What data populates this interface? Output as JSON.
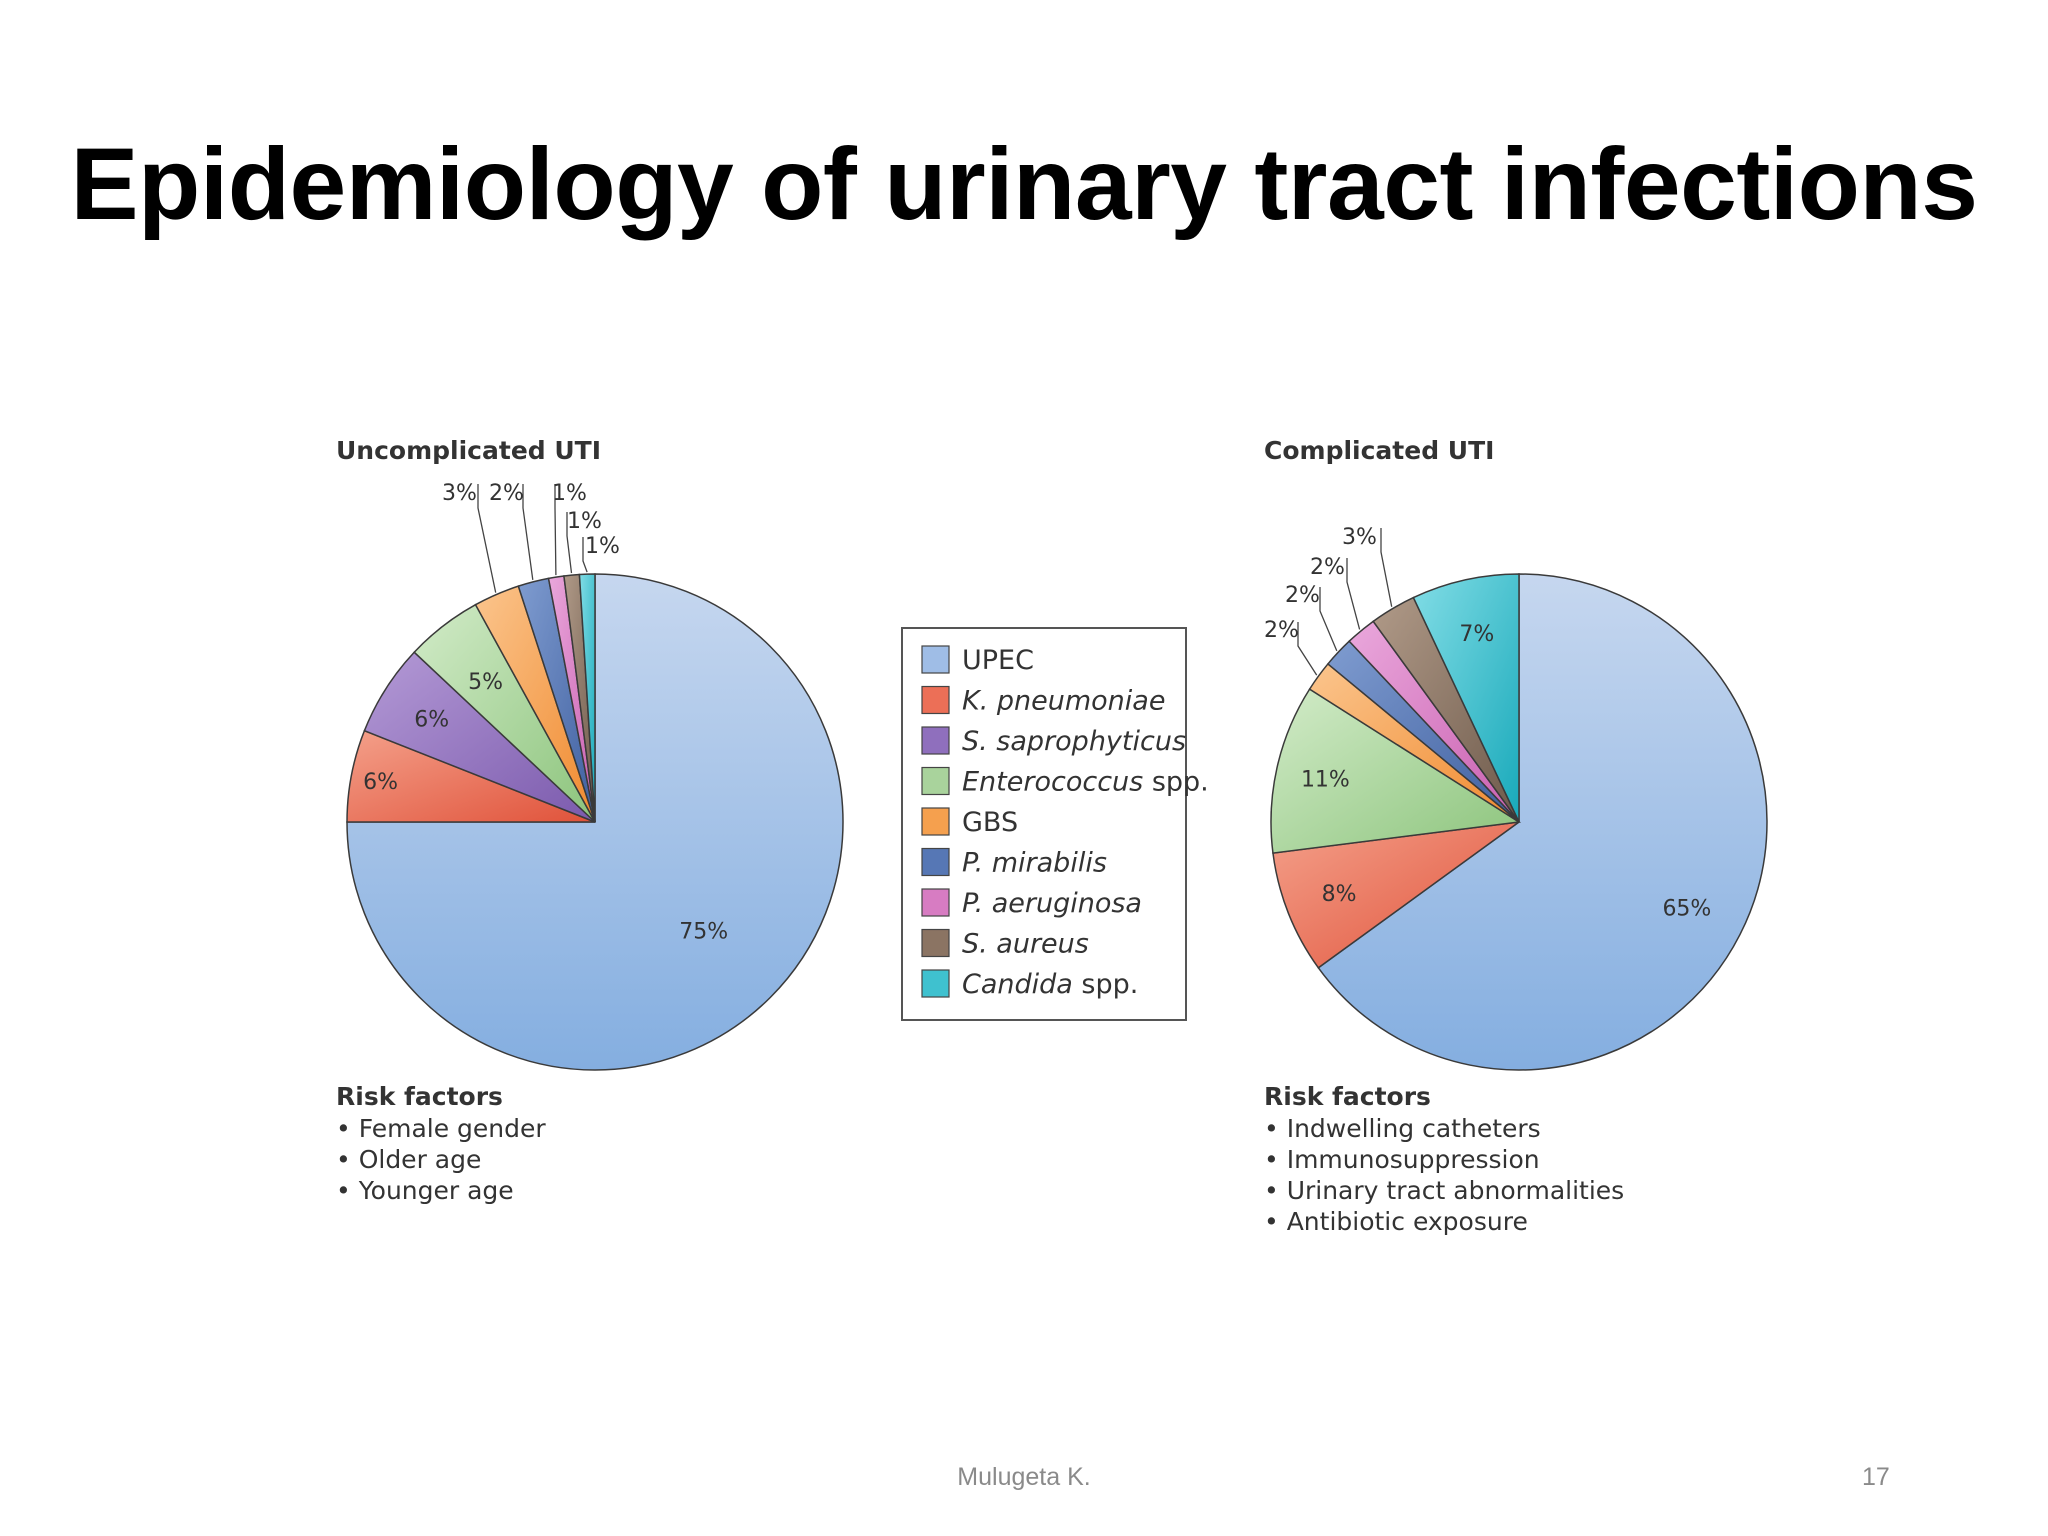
{
  "slide": {
    "title": "Epidemiology of urinary tract infections",
    "author": "Mulugeta K.",
    "page_number": "17"
  },
  "legend": [
    {
      "label": "UPEC",
      "italic": false,
      "color": "#9fbde6"
    },
    {
      "label": "K. pneumoniae",
      "italic": true,
      "color": "#ec6f57"
    },
    {
      "label": "S. saprophyticus",
      "italic": true,
      "color": "#8f6fbd"
    },
    {
      "label": "Enterococcus spp.",
      "italic": "partial",
      "color": "#a9d39c"
    },
    {
      "label": "GBS",
      "italic": false,
      "color": "#f5a04e"
    },
    {
      "label": "P. mirabilis",
      "italic": true,
      "color": "#5677b5"
    },
    {
      "label": "P. aeruginosa",
      "italic": true,
      "color": "#d77cc2"
    },
    {
      "label": "S. aureus",
      "italic": true,
      "color": "#8b7463"
    },
    {
      "label": "Candida spp.",
      "italic": "partial",
      "color": "#3fc1cf"
    }
  ],
  "chart_data": [
    {
      "type": "pie",
      "title": "Uncomplicated UTI",
      "categories": [
        "UPEC",
        "K. pneumoniae",
        "S. saprophyticus",
        "Enterococcus spp.",
        "GBS",
        "P. mirabilis",
        "P. aeruginosa",
        "S. aureus",
        "Candida spp."
      ],
      "values": [
        75,
        6,
        6,
        5,
        3,
        2,
        1,
        1,
        1
      ],
      "labels": [
        "75%",
        "6%",
        "6%",
        "5%",
        "3%",
        "2%",
        "1%",
        "1%",
        "1%"
      ],
      "risk_factors_title": "Risk factors",
      "risk_factors": [
        "Female gender",
        "Older age",
        "Younger age"
      ]
    },
    {
      "type": "pie",
      "title": "Complicated UTI",
      "categories": [
        "UPEC",
        "K. pneumoniae",
        "Enterococcus spp.",
        "GBS",
        "P. mirabilis",
        "P. aeruginosa",
        "S. aureus",
        "Candida spp."
      ],
      "values": [
        65,
        8,
        11,
        2,
        2,
        2,
        3,
        7
      ],
      "labels": [
        "65%",
        "8%",
        "11%",
        "2%",
        "2%",
        "2%",
        "3%",
        "7%"
      ],
      "risk_factors_title": "Risk factors",
      "risk_factors": [
        "Indwelling catheters",
        "Immunosuppression",
        "Urinary tract abnormalities",
        "Antibiotic exposure"
      ]
    }
  ]
}
